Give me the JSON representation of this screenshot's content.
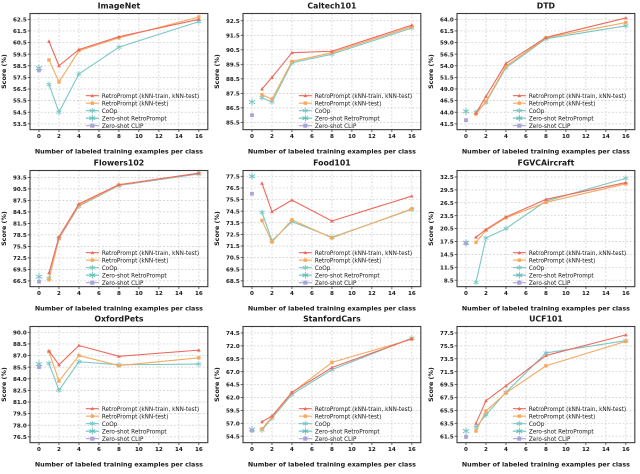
{
  "figure": {
    "xlabel": "Number of labeled training examples per class",
    "ylabel": "Score (%)",
    "xticks": [
      0,
      2,
      4,
      6,
      8,
      10,
      12,
      14,
      16
    ],
    "xlim": [
      -0.9,
      16.9
    ],
    "colors": {
      "retro_train_test": "#ed6a5e",
      "retro_test": "#f4a95f",
      "coop": "#79c7c5",
      "zs_retro": "#62bfbd",
      "zs_clip": "#aaa5d8",
      "grid": "#c9c9c9",
      "frame": "#3a3a3a",
      "text": "#1a1a1a"
    },
    "legend": [
      {
        "key": "retro_train_test",
        "label": "RetroPrompt (kNN-train, kNN-test)",
        "marker": "triangle"
      },
      {
        "key": "retro_test",
        "label": "RetroPrompt (kNN-test)",
        "marker": "square"
      },
      {
        "key": "coop",
        "label": "CoOp",
        "marker": "asterisk"
      },
      {
        "key": "zs_retro",
        "label": "Zero-shot RetroPrompt",
        "marker": "asterisk"
      },
      {
        "key": "zs_clip",
        "label": "Zero-shot CLIP",
        "marker": "square"
      }
    ]
  },
  "chart_data": [
    {
      "type": "line",
      "title": "ImageNet",
      "ylim": [
        53.0,
        63.0
      ],
      "yticks": [
        53.5,
        54.5,
        55.5,
        56.5,
        57.5,
        58.5,
        59.5,
        60.5,
        61.5,
        62.5
      ],
      "x": [
        1,
        2,
        4,
        8,
        16
      ],
      "series": [
        {
          "key": "retro_train_test",
          "name": "RetroPrompt (kNN-train, kNN-test)",
          "values": [
            60.6,
            58.5,
            59.9,
            61.0,
            62.5
          ]
        },
        {
          "key": "retro_test",
          "name": "RetroPrompt (kNN-test)",
          "values": [
            59.0,
            57.1,
            59.8,
            60.9,
            62.7
          ]
        },
        {
          "key": "coop",
          "name": "CoOp",
          "values": [
            56.9,
            54.5,
            57.8,
            60.1,
            62.3
          ]
        }
      ],
      "zero_shot": [
        {
          "key": "zs_retro",
          "name": "Zero-shot RetroPrompt",
          "x": 0,
          "value": 58.3
        },
        {
          "key": "zs_clip",
          "name": "Zero-shot CLIP",
          "x": 0,
          "value": 58.1
        }
      ]
    },
    {
      "type": "line",
      "title": "Caltech101",
      "ylim": [
        85.0,
        93.0
      ],
      "yticks": [
        85.5,
        86.5,
        87.5,
        88.5,
        89.5,
        90.5,
        91.5,
        92.5
      ],
      "x": [
        1,
        2,
        4,
        8,
        16
      ],
      "series": [
        {
          "key": "retro_train_test",
          "name": "RetroPrompt (kNN-train, kNN-test)",
          "values": [
            87.8,
            88.6,
            90.3,
            90.4,
            92.2
          ]
        },
        {
          "key": "retro_test",
          "name": "RetroPrompt (kNN-test)",
          "values": [
            87.4,
            87.1,
            89.7,
            90.3,
            92.1
          ]
        },
        {
          "key": "coop",
          "name": "CoOp",
          "values": [
            87.2,
            86.9,
            89.6,
            90.2,
            92.0
          ]
        }
      ],
      "zero_shot": [
        {
          "key": "zs_retro",
          "name": "Zero-shot RetroPrompt",
          "x": 0,
          "value": 86.9
        },
        {
          "key": "zs_clip",
          "name": "Zero-shot CLIP",
          "x": 0,
          "value": 86.0
        }
      ]
    },
    {
      "type": "line",
      "title": "DTD",
      "ylim": [
        40.25,
        65.25
      ],
      "yticks": [
        41.5,
        44.0,
        46.5,
        49.0,
        51.5,
        54.0,
        56.5,
        59.0,
        61.5,
        64.0
      ],
      "x": [
        1,
        2,
        4,
        8,
        16
      ],
      "series": [
        {
          "key": "retro_train_test",
          "name": "RetroPrompt (kNN-train, kNN-test)",
          "values": [
            43.8,
            47.4,
            54.5,
            60.1,
            64.3
          ]
        },
        {
          "key": "retro_test",
          "name": "RetroPrompt (kNN-test)",
          "values": [
            43.6,
            46.3,
            53.9,
            60.0,
            63.3
          ]
        },
        {
          "key": "coop",
          "name": "CoOp",
          "values": [
            44.0,
            46.1,
            53.6,
            59.8,
            62.6
          ]
        }
      ],
      "zero_shot": [
        {
          "key": "zs_retro",
          "name": "Zero-shot RetroPrompt",
          "x": 0,
          "value": 44.2
        },
        {
          "key": "zs_clip",
          "name": "Zero-shot CLIP",
          "x": 0,
          "value": 42.3
        }
      ]
    },
    {
      "type": "line",
      "title": "Flowers102",
      "ylim": [
        65.0,
        95.3
      ],
      "yticks": [
        66.5,
        69.5,
        72.5,
        75.5,
        78.5,
        81.5,
        84.5,
        87.5,
        90.5,
        93.5
      ],
      "x": [
        1,
        2,
        4,
        8,
        16
      ],
      "series": [
        {
          "key": "retro_train_test",
          "name": "RetroPrompt (kNN-train, kNN-test)",
          "values": [
            68.6,
            78.0,
            86.6,
            91.6,
            94.6
          ]
        },
        {
          "key": "retro_test",
          "name": "RetroPrompt (kNN-test)",
          "values": [
            66.8,
            77.8,
            86.2,
            91.5,
            94.6
          ]
        },
        {
          "key": "coop",
          "name": "CoOp",
          "values": [
            67.2,
            77.5,
            86.0,
            91.4,
            94.4
          ]
        }
      ],
      "zero_shot": [
        {
          "key": "zs_retro",
          "name": "Zero-shot RetroPrompt",
          "x": 0,
          "value": 67.6
        },
        {
          "key": "zs_clip",
          "name": "Zero-shot CLIP",
          "x": 0,
          "value": 66.3
        }
      ]
    },
    {
      "type": "line",
      "title": "Food101",
      "ylim": [
        68.0,
        78.0
      ],
      "yticks": [
        68.5,
        69.5,
        70.5,
        71.5,
        72.5,
        73.5,
        74.5,
        75.5,
        76.5,
        77.5
      ],
      "x": [
        1,
        2,
        4,
        8,
        16
      ],
      "series": [
        {
          "key": "retro_train_test",
          "name": "RetroPrompt (kNN-train, kNN-test)",
          "values": [
            76.9,
            74.45,
            75.45,
            73.65,
            75.8
          ]
        },
        {
          "key": "retro_test",
          "name": "RetroPrompt (kNN-test)",
          "values": [
            73.7,
            71.85,
            73.75,
            72.2,
            74.7
          ]
        },
        {
          "key": "coop",
          "name": "CoOp",
          "values": [
            74.4,
            71.95,
            73.6,
            72.25,
            74.65
          ]
        }
      ],
      "zero_shot": [
        {
          "key": "zs_retro",
          "name": "Zero-shot RetroPrompt",
          "x": 0,
          "value": 77.5
        },
        {
          "key": "zs_clip",
          "name": "Zero-shot CLIP",
          "x": 0,
          "value": 76.0
        }
      ]
    },
    {
      "type": "line",
      "title": "FGVCAircraft",
      "ylim": [
        7.0,
        34.0
      ],
      "yticks": [
        8.5,
        11.5,
        14.5,
        17.5,
        20.5,
        23.5,
        26.5,
        29.5,
        32.5
      ],
      "x": [
        1,
        2,
        4,
        8,
        16
      ],
      "series": [
        {
          "key": "retro_train_test",
          "name": "RetroPrompt (kNN-train, kNN-test)",
          "values": [
            18.5,
            20.3,
            23.2,
            27.3,
            31.2
          ]
        },
        {
          "key": "retro_test",
          "name": "RetroPrompt (kNN-test)",
          "values": [
            17.3,
            20.1,
            23.0,
            26.6,
            30.9
          ]
        },
        {
          "key": "coop",
          "name": "CoOp",
          "values": [
            8.0,
            18.3,
            20.5,
            26.9,
            32.2
          ]
        }
      ],
      "zero_shot": [
        {
          "key": "zs_retro",
          "name": "Zero-shot RetroPrompt",
          "x": 0,
          "value": 17.2
        },
        {
          "key": "zs_clip",
          "name": "Zero-shot CLIP",
          "x": 0,
          "value": 17.1
        }
      ]
    },
    {
      "type": "line",
      "title": "OxfordPets",
      "ylim": [
        75.75,
        90.75
      ],
      "yticks": [
        76.5,
        78.0,
        79.5,
        81.0,
        82.5,
        84.0,
        85.5,
        87.0,
        88.5,
        90.0
      ],
      "x": [
        1,
        2,
        4,
        8,
        16
      ],
      "series": [
        {
          "key": "retro_train_test",
          "name": "RetroPrompt (kNN-train, kNN-test)",
          "values": [
            87.6,
            85.8,
            88.3,
            86.9,
            87.7
          ]
        },
        {
          "key": "retro_test",
          "name": "RetroPrompt (kNN-test)",
          "values": [
            87.5,
            83.7,
            87.0,
            85.7,
            86.7
          ]
        },
        {
          "key": "coop",
          "name": "CoOp",
          "values": [
            86.0,
            82.5,
            86.2,
            85.8,
            85.9
          ]
        }
      ],
      "zero_shot": [
        {
          "key": "zs_retro",
          "name": "Zero-shot RetroPrompt",
          "x": 0,
          "value": 85.9
        },
        {
          "key": "zs_clip",
          "name": "Zero-shot CLIP",
          "x": 0,
          "value": 85.5
        }
      ]
    },
    {
      "type": "line",
      "title": "StanfordCars",
      "ylim": [
        53.25,
        75.75
      ],
      "yticks": [
        54.5,
        57.0,
        59.5,
        62.0,
        64.5,
        67.0,
        69.5,
        72.0,
        74.5
      ],
      "x": [
        1,
        2,
        4,
        8,
        16
      ],
      "series": [
        {
          "key": "retro_train_test",
          "name": "RetroPrompt (kNN-train, kNN-test)",
          "values": [
            57.3,
            58.4,
            63.0,
            67.8,
            73.4
          ]
        },
        {
          "key": "retro_test",
          "name": "RetroPrompt (kNN-test)",
          "values": [
            55.9,
            58.2,
            62.9,
            68.8,
            73.3
          ]
        },
        {
          "key": "coop",
          "name": "CoOp",
          "values": [
            55.7,
            58.0,
            62.6,
            67.4,
            73.5
          ]
        }
      ],
      "zero_shot": [
        {
          "key": "zs_retro",
          "name": "Zero-shot RetroPrompt",
          "x": 0,
          "value": 55.8
        },
        {
          "key": "zs_clip",
          "name": "Zero-shot CLIP",
          "x": 0,
          "value": 55.6
        }
      ]
    },
    {
      "type": "line",
      "title": "UCF101",
      "ylim": [
        60.5,
        78.5
      ],
      "yticks": [
        61.5,
        63.5,
        65.5,
        67.5,
        69.5,
        71.5,
        73.5,
        75.5,
        77.5
      ],
      "x": [
        1,
        2,
        4,
        8,
        16
      ],
      "series": [
        {
          "key": "retro_train_test",
          "name": "RetroPrompt (kNN-train, kNN-test)",
          "values": [
            63.5,
            67.0,
            69.3,
            74.0,
            77.2
          ]
        },
        {
          "key": "retro_test",
          "name": "RetroPrompt (kNN-test)",
          "values": [
            62.3,
            65.4,
            68.2,
            72.4,
            76.2
          ]
        },
        {
          "key": "coop",
          "name": "CoOp",
          "values": [
            62.9,
            64.8,
            68.3,
            74.4,
            76.3
          ]
        }
      ],
      "zero_shot": [
        {
          "key": "zs_retro",
          "name": "Zero-shot RetroPrompt",
          "x": 0,
          "value": 62.3
        },
        {
          "key": "zs_clip",
          "name": "Zero-shot CLIP",
          "x": 0,
          "value": 61.4
        }
      ]
    }
  ]
}
